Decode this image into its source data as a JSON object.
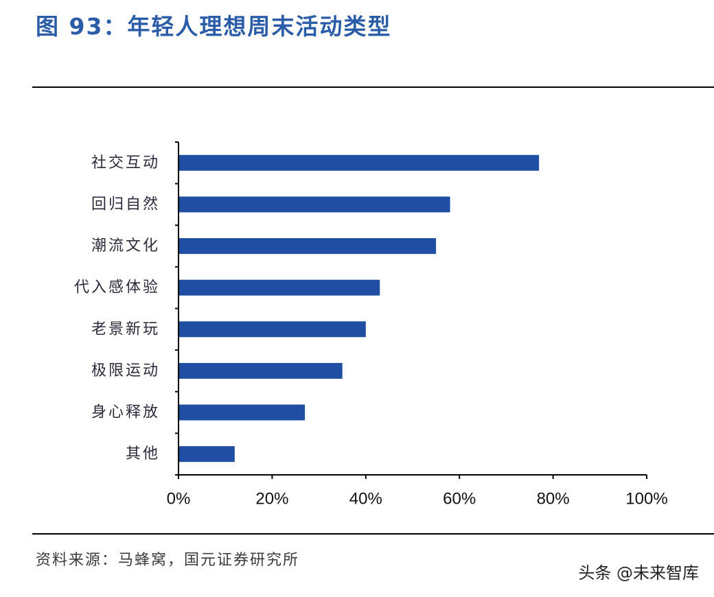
{
  "header": {
    "title": "图 93：年轻人理想周末活动类型"
  },
  "footer": {
    "source": "资料来源：马蜂窝，国元证券研究所",
    "watermark": "头条 @未来智库"
  },
  "colors": {
    "bar": "#1f4ea3",
    "title": "#2a5ca8",
    "axis": "#000000"
  },
  "chart_data": {
    "type": "bar",
    "orientation": "horizontal",
    "categories": [
      "社交互动",
      "回归自然",
      "潮流文化",
      "代入感体验",
      "老景新玩",
      "极限运动",
      "身心释放",
      "其他"
    ],
    "values": [
      77,
      58,
      55,
      43,
      40,
      35,
      27,
      12
    ],
    "value_unit": "%",
    "xlim": [
      0,
      100
    ],
    "xticks": [
      0,
      20,
      40,
      60,
      80,
      100
    ],
    "xtick_labels": [
      "0%",
      "20%",
      "40%",
      "60%",
      "80%",
      "100%"
    ],
    "grid": false,
    "legend": "none"
  }
}
